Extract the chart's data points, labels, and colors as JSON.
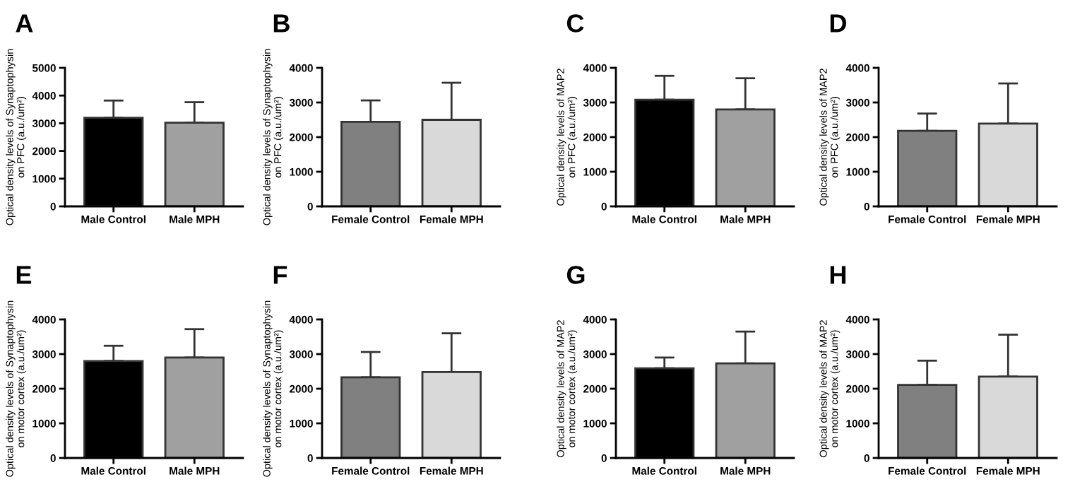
{
  "chart_data": [
    {
      "type": "bar",
      "title": "A",
      "ylabel": "Optical density levels of Synaptophysin\non PFC (a.u./um²)",
      "categories": [
        "Male Control",
        "Male MPH"
      ],
      "values": [
        3200,
        3020
      ],
      "errors": [
        [
          3200,
          3820
        ],
        [
          3020,
          3760
        ]
      ],
      "colors": [
        "#000000",
        "#a0a0a0"
      ],
      "ylim": [
        0,
        5000
      ],
      "yticks": [
        0,
        1000,
        2000,
        3000,
        4000,
        5000
      ],
      "grid": false,
      "legend": false
    },
    {
      "type": "bar",
      "title": "B",
      "ylabel": "Optical density levels of Synaptophysin\non PFC (a.u./um²)",
      "categories": [
        "Female Control",
        "Female MPH"
      ],
      "values": [
        2440,
        2500
      ],
      "errors": [
        [
          2440,
          3060
        ],
        [
          2500,
          3570
        ]
      ],
      "colors": [
        "#808080",
        "#d9d9d9"
      ],
      "ylim": [
        0,
        4000
      ],
      "yticks": [
        0,
        1000,
        2000,
        3000,
        4000
      ],
      "grid": false,
      "legend": false
    },
    {
      "type": "bar",
      "title": "C",
      "ylabel": "Optical density levels of MAP2\non PFC (a.u./um²)",
      "categories": [
        "Male Control",
        "Male MPH"
      ],
      "values": [
        3080,
        2800
      ],
      "errors": [
        [
          3080,
          3770
        ],
        [
          2800,
          3700
        ]
      ],
      "colors": [
        "#000000",
        "#a0a0a0"
      ],
      "ylim": [
        0,
        4000
      ],
      "yticks": [
        0,
        1000,
        2000,
        3000,
        4000
      ],
      "grid": false,
      "legend": false
    },
    {
      "type": "bar",
      "title": "D",
      "ylabel": "Optical density levels of MAP2\non PFC (a.u./um²)",
      "categories": [
        "Female Control",
        "Female MPH"
      ],
      "values": [
        2180,
        2390
      ],
      "errors": [
        [
          2180,
          2680
        ],
        [
          2390,
          3550
        ]
      ],
      "colors": [
        "#808080",
        "#d9d9d9"
      ],
      "ylim": [
        0,
        4000
      ],
      "yticks": [
        0,
        1000,
        2000,
        3000,
        4000
      ],
      "grid": false,
      "legend": false
    },
    {
      "type": "bar",
      "title": "E",
      "ylabel": "Optical density levels of Synaptophysin\non motor cortex (a.u./um²)",
      "categories": [
        "Male Control",
        "Male MPH"
      ],
      "values": [
        2800,
        2900
      ],
      "errors": [
        [
          2800,
          3240
        ],
        [
          2900,
          3720
        ]
      ],
      "colors": [
        "#000000",
        "#a0a0a0"
      ],
      "ylim": [
        0,
        4000
      ],
      "yticks": [
        0,
        1000,
        2000,
        3000,
        4000
      ],
      "grid": false,
      "legend": false
    },
    {
      "type": "bar",
      "title": "F",
      "ylabel": "Optical density levels of Synaptophysin\non motor cortex (a.u./um²)",
      "categories": [
        "Female Control",
        "Female MPH"
      ],
      "values": [
        2330,
        2480
      ],
      "errors": [
        [
          2330,
          3060
        ],
        [
          2480,
          3600
        ]
      ],
      "colors": [
        "#808080",
        "#d9d9d9"
      ],
      "ylim": [
        0,
        4000
      ],
      "yticks": [
        0,
        1000,
        2000,
        3000,
        4000
      ],
      "grid": false,
      "legend": false
    },
    {
      "type": "bar",
      "title": "G",
      "ylabel": "Optical density levels of MAP2\non motor cortex (a.u./um²)",
      "categories": [
        "Male Control",
        "Male MPH"
      ],
      "values": [
        2590,
        2730
      ],
      "errors": [
        [
          2590,
          2900
        ],
        [
          2730,
          3650
        ]
      ],
      "colors": [
        "#000000",
        "#a0a0a0"
      ],
      "ylim": [
        0,
        4000
      ],
      "yticks": [
        0,
        1000,
        2000,
        3000,
        4000
      ],
      "grid": false,
      "legend": false
    },
    {
      "type": "bar",
      "title": "H",
      "ylabel": "Optical density levels of MAP2\non motor cortex (a.u./um²)",
      "categories": [
        "Female Control",
        "Female MPH"
      ],
      "values": [
        2110,
        2350
      ],
      "errors": [
        [
          2110,
          2810
        ],
        [
          2350,
          3560
        ]
      ],
      "colors": [
        "#808080",
        "#d9d9d9"
      ],
      "ylim": [
        0,
        4000
      ],
      "yticks": [
        0,
        1000,
        2000,
        3000,
        4000
      ],
      "grid": false,
      "legend": false
    }
  ]
}
